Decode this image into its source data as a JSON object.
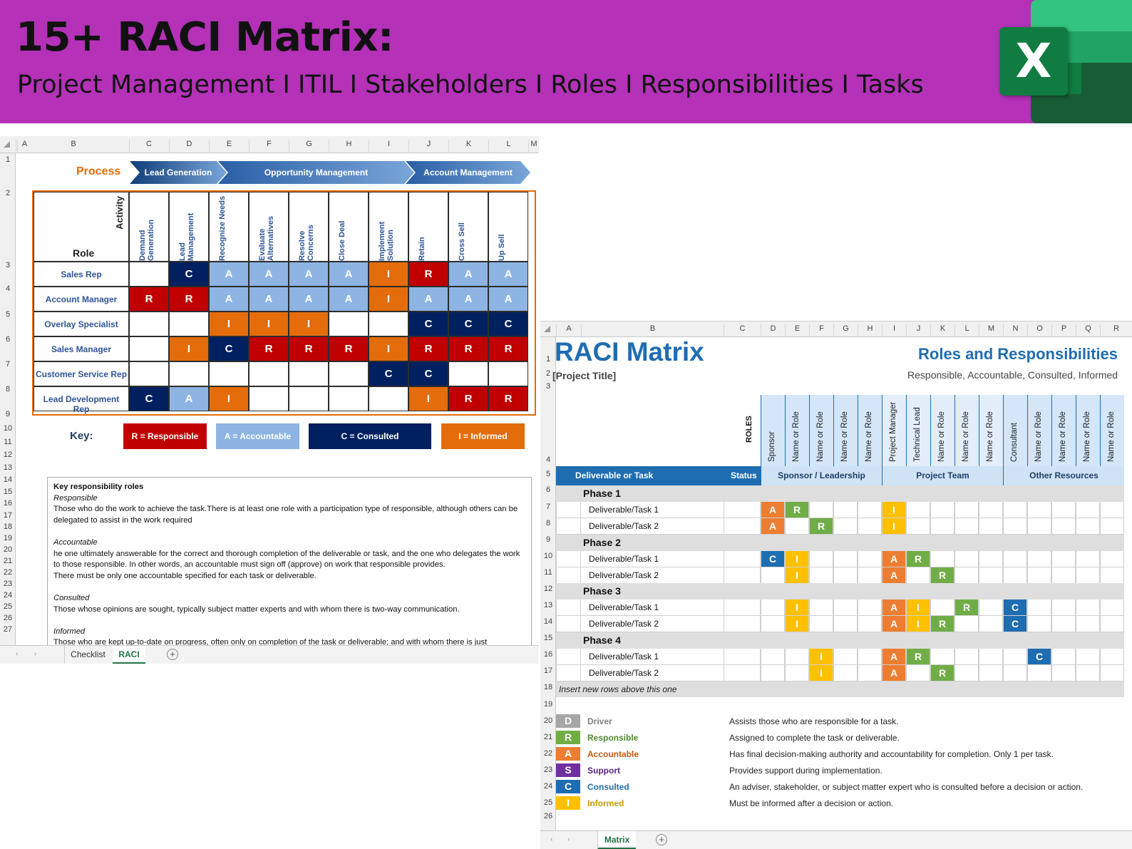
{
  "banner": {
    "title": "15+ RACI Matrix:",
    "subtitle": "Project Management I ITIL I Stakeholders I Roles I Responsibilities I Tasks",
    "logo_letter": "X",
    "logo_icon": "excel-logo-icon",
    "bg_color": "#b431b8"
  },
  "sheet1": {
    "columns": [
      "A",
      "B",
      "C",
      "D",
      "E",
      "F",
      "G",
      "H",
      "I",
      "J",
      "K",
      "L",
      "M"
    ],
    "rows": [
      "1",
      "2",
      "3",
      "4",
      "5",
      "6",
      "7",
      "8",
      "9",
      "10",
      "11",
      "12",
      "13",
      "14",
      "15",
      "16",
      "17",
      "18",
      "19",
      "20",
      "21",
      "22",
      "23",
      "24",
      "25",
      "26",
      "27"
    ],
    "process_label": "Process",
    "stages": [
      "Lead Generation",
      "Opportunity Management",
      "Account Management"
    ],
    "activity_label": "Activity",
    "role_label": "Role",
    "activities": [
      "Demand Generation",
      "Lead Management",
      "Recognize Needs",
      "Evaluate Alternatives",
      "Resolve Concerns",
      "Close Deal",
      "Implement Solution",
      "Retain",
      "Cross Sell",
      "Up Sell"
    ],
    "roles": [
      "Sales Rep",
      "Account Manager",
      "Overlay Specialist",
      "Sales Manager",
      "Customer Service Rep",
      "Lead Development Rep"
    ],
    "matrix": [
      [
        "",
        "C",
        "A",
        "A",
        "A",
        "A",
        "I",
        "R",
        "A",
        "A"
      ],
      [
        "R",
        "R",
        "A",
        "A",
        "A",
        "A",
        "I",
        "A",
        "A",
        "A"
      ],
      [
        "",
        "",
        "I",
        "I",
        "I",
        "",
        "",
        "C",
        "C",
        "C"
      ],
      [
        "",
        "I",
        "C",
        "R",
        "R",
        "R",
        "I",
        "R",
        "R",
        "R"
      ],
      [
        "",
        "",
        "",
        "",
        "",
        "",
        "C",
        "C",
        "",
        ""
      ],
      [
        "C",
        "A",
        "I",
        "",
        "",
        "",
        "",
        "I",
        "R",
        "R"
      ]
    ],
    "key_label": "Key:",
    "keys": [
      "R = Responsible",
      "A = Accountable",
      "C = Consulted",
      "I = Informed"
    ],
    "colors": {
      "R": "#c00000",
      "A": "#8db4e2",
      "C": "#002060",
      "I": "#e46c0a"
    },
    "notes": {
      "heading": "Key responsibility roles",
      "responsible_title": "Responsible",
      "responsible_text": "Those who do the work to achieve the task.There is at least one role with a participation type of responsible, although others can be delegated to assist in the work required",
      "accountable_title": "Accountable",
      "accountable_text1": "he one ultimately answerable for the correct and thorough completion of the deliverable or task, and the one who delegates the work to those responsible.  In other words, an accountable must sign off (approve) on work that responsible provides.",
      "accountable_text2": "There must be only one accountable specified for each task or deliverable.",
      "consulted_title": "Consulted",
      "consulted_text": "Those whose opinions are sought, typically subject matter experts and with whom there is two-way communication.",
      "informed_title": "Informed",
      "informed_text": "Those who are kept up-to-date on progress, often only on completion of the task or deliverable; and with whom there is just"
    },
    "tabs": [
      "Checklist",
      "RACI"
    ],
    "active_tab": "RACI"
  },
  "sheet2": {
    "columns": [
      "A",
      "B",
      "C",
      "D",
      "E",
      "F",
      "G",
      "H",
      "I",
      "J",
      "K",
      "L",
      "M",
      "N",
      "O",
      "P",
      "Q",
      "R"
    ],
    "rows": [
      "1",
      "2",
      "3",
      "4",
      "5",
      "6",
      "7",
      "8",
      "9",
      "10",
      "11",
      "12",
      "13",
      "14",
      "15",
      "16",
      "17",
      "18",
      "19",
      "20",
      "21",
      "22",
      "23",
      "24",
      "25",
      "26"
    ],
    "title": "RACI Matrix",
    "project_title": "[Project Title]",
    "right_title": "Roles and Responsibilities",
    "right_subtitle": "Responsible, Accountable, Consulted, Informed",
    "roles_label": "ROLES",
    "role_headers": [
      "Sponsor",
      "Name or Role",
      "Name or Role",
      "Name or Role",
      "Name or Role",
      "Project Manager",
      "Technical Lead",
      "Name or Role",
      "Name or Role",
      "Name or Role",
      "Consultant",
      "Name or Role",
      "Name or Role",
      "Name or Role",
      "Name or Role"
    ],
    "deliverable_label": "Deliverable or Task",
    "status_label": "Status",
    "groups": [
      "Sponsor / Leadership",
      "Project Team",
      "Other Resources"
    ],
    "phases": [
      {
        "name": "Phase 1",
        "tasks": [
          {
            "name": "Deliverable/Task 1",
            "cells": [
              "A",
              "R",
              "",
              "",
              "",
              "I",
              "",
              "",
              "",
              "",
              "",
              "",
              "",
              "",
              ""
            ]
          },
          {
            "name": "Deliverable/Task 2",
            "cells": [
              "A",
              "",
              "R",
              "",
              "",
              "I",
              "",
              "",
              "",
              "",
              "",
              "",
              "",
              "",
              ""
            ]
          }
        ]
      },
      {
        "name": "Phase 2",
        "tasks": [
          {
            "name": "Deliverable/Task 1",
            "cells": [
              "C",
              "I",
              "",
              "",
              "",
              "A",
              "R",
              "",
              "",
              "",
              "",
              "",
              "",
              "",
              ""
            ]
          },
          {
            "name": "Deliverable/Task 2",
            "cells": [
              "",
              "I",
              "",
              "",
              "",
              "A",
              "",
              "R",
              "",
              "",
              "",
              "",
              "",
              "",
              ""
            ]
          }
        ]
      },
      {
        "name": "Phase 3",
        "tasks": [
          {
            "name": "Deliverable/Task 1",
            "cells": [
              "",
              "I",
              "",
              "",
              "",
              "A",
              "I",
              "",
              "R",
              "",
              "C",
              "",
              "",
              "",
              ""
            ]
          },
          {
            "name": "Deliverable/Task 2",
            "cells": [
              "",
              "I",
              "",
              "",
              "",
              "A",
              "I",
              "R",
              "",
              "",
              "C",
              "",
              "",
              "",
              ""
            ]
          }
        ]
      },
      {
        "name": "Phase 4",
        "tasks": [
          {
            "name": "Deliverable/Task 1",
            "cells": [
              "",
              "",
              "I",
              "",
              "",
              "A",
              "R",
              "",
              "",
              "",
              "",
              "C",
              "",
              "",
              ""
            ]
          },
          {
            "name": "Deliverable/Task 2",
            "cells": [
              "",
              "",
              "I",
              "",
              "",
              "A",
              "",
              "R",
              "",
              "",
              "",
              "",
              "",
              "",
              ""
            ]
          }
        ]
      }
    ],
    "insert_note": "Insert new rows above this one",
    "legend": [
      {
        "code": "D",
        "name": "Driver",
        "desc": "Assists those who are responsible for a task.",
        "color": "#a6a6a6",
        "text": "#808080"
      },
      {
        "code": "R",
        "name": "Responsible",
        "desc": "Assigned to complete the task or deliverable.",
        "color": "#70ad47",
        "text": "#4e8a2e"
      },
      {
        "code": "A",
        "name": "Accountable",
        "desc": "Has final decision-making authority and accountability for completion. Only 1 per task.",
        "color": "#ed7d31",
        "text": "#c55a11"
      },
      {
        "code": "S",
        "name": "Support",
        "desc": "Provides support during implementation.",
        "color": "#7030a0",
        "text": "#5b2585"
      },
      {
        "code": "C",
        "name": "Consulted",
        "desc": "An adviser, stakeholder, or subject matter expert who is consulted before a decision or action.",
        "color": "#1f6db1",
        "text": "#1f6db1"
      },
      {
        "code": "I",
        "name": "Informed",
        "desc": "Must be informed after a decision or action.",
        "color": "#ffc000",
        "text": "#c99a00"
      }
    ],
    "colors": {
      "A": "#ed7d31",
      "R": "#70ad47",
      "I": "#ffc000",
      "C": "#1f6db1"
    },
    "tabs": [
      "Matrix"
    ],
    "active_tab": "Matrix"
  }
}
